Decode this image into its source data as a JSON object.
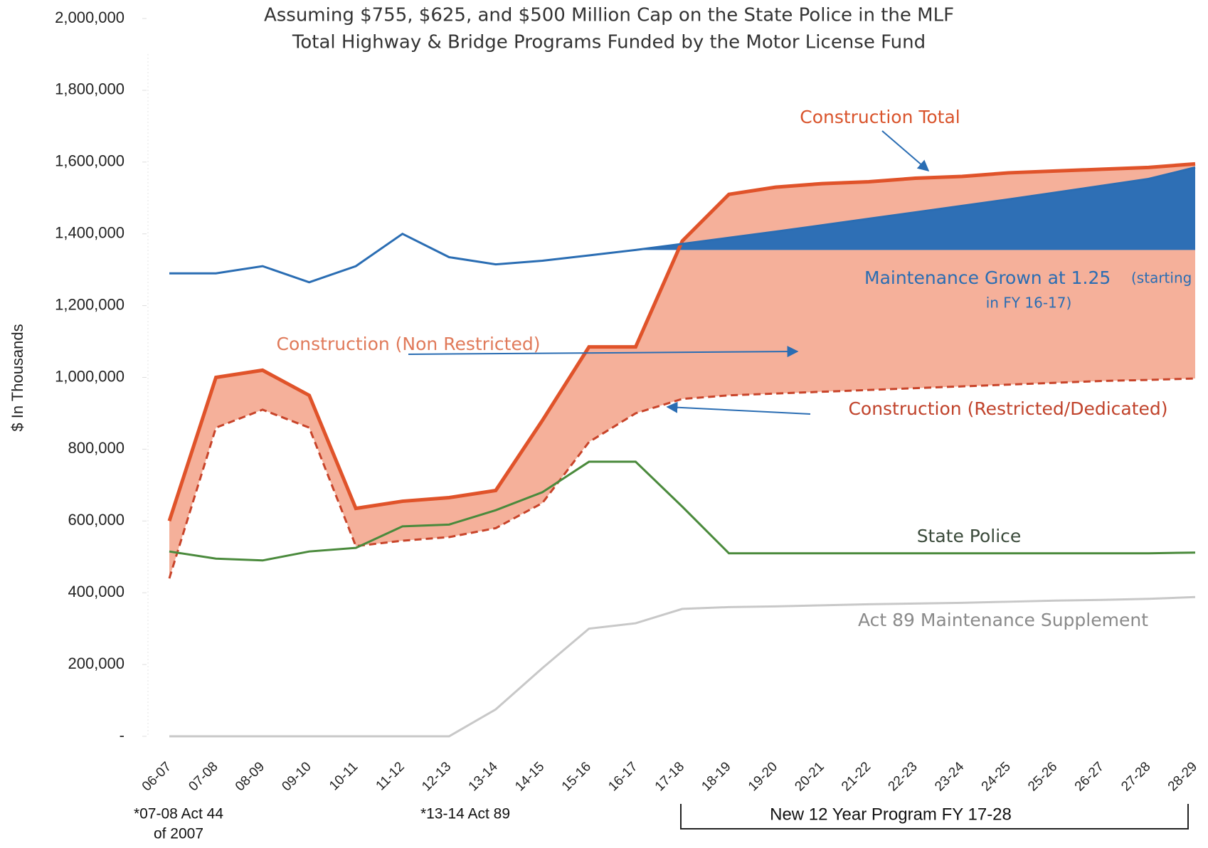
{
  "chart_data": {
    "type": "line",
    "title": "Assuming $755, $625, and $500 Million Cap on the State Police in the MLF",
    "subtitle": "Total Highway & Bridge Programs Funded by the Motor License Fund",
    "y_label": "$ In Thousands",
    "categories": [
      "06-07",
      "07-08",
      "08-09",
      "09-10",
      "10-11",
      "11-12",
      "12-13",
      "13-14",
      "14-15",
      "15-16",
      "16-17",
      "17-18",
      "18-19",
      "19-20",
      "20-21",
      "21-22",
      "22-23",
      "23-24",
      "24-25",
      "25-26",
      "26-27",
      "27-28",
      "28-29"
    ],
    "ylim": [
      0,
      2000000
    ],
    "yticks": [
      {
        "value": 0,
        "label": "-"
      },
      {
        "value": 200000,
        "label": "200,000"
      },
      {
        "value": 400000,
        "label": "400,000"
      },
      {
        "value": 600000,
        "label": "600,000"
      },
      {
        "value": 800000,
        "label": "800,000"
      },
      {
        "value": 1000000,
        "label": "1,000,000"
      },
      {
        "value": 1200000,
        "label": "1,200,000"
      },
      {
        "value": 1400000,
        "label": "1,400,000"
      },
      {
        "value": 1600000,
        "label": "1,600,000"
      },
      {
        "value": 1800000,
        "label": "1,800,000"
      },
      {
        "value": 2000000,
        "label": "2,000,000"
      }
    ],
    "series": [
      {
        "name": "Construction Total",
        "color": "#e0532a",
        "values": [
          600000,
          1000000,
          1020000,
          950000,
          635000,
          655000,
          665000,
          685000,
          880000,
          1085000,
          1085000,
          1380000,
          1510000,
          1530000,
          1540000,
          1545000,
          1555000,
          1560000,
          1570000,
          1575000,
          1580000,
          1585000,
          1595000
        ]
      },
      {
        "name": "Construction (Restricted/Dedicated)",
        "color": "#c8442a",
        "dashed": true,
        "values": [
          440000,
          860000,
          910000,
          860000,
          530000,
          545000,
          555000,
          580000,
          650000,
          820000,
          900000,
          940000,
          950000,
          955000,
          960000,
          965000,
          970000,
          975000,
          980000,
          985000,
          990000,
          993000,
          997000
        ]
      },
      {
        "name": "Maintenance Grown at 1.25",
        "color": "#2a6db3",
        "values": [
          1290000,
          1290000,
          1310000,
          1265000,
          1310000,
          1400000,
          1335000,
          1315000,
          1325000,
          1340000,
          1355000,
          1372000,
          1389000,
          1406000,
          1424000,
          1442000,
          1460000,
          1478000,
          1496000,
          1515000,
          1534000,
          1553000,
          1585000
        ]
      },
      {
        "name": "State Police",
        "color": "#4a8a3c",
        "values": [
          515000,
          495000,
          490000,
          515000,
          525000,
          585000,
          590000,
          630000,
          680000,
          765000,
          765000,
          640000,
          510000,
          510000,
          510000,
          510000,
          510000,
          510000,
          510000,
          510000,
          510000,
          510000,
          512000
        ]
      },
      {
        "name": "Act 89 Maintenance Supplement",
        "color": "#c8c8c8",
        "values": [
          0,
          0,
          0,
          0,
          0,
          0,
          0,
          75000,
          190000,
          300000,
          315000,
          355000,
          360000,
          362000,
          365000,
          368000,
          370000,
          372000,
          375000,
          378000,
          380000,
          383000,
          388000
        ]
      }
    ],
    "annotations": [
      "Construction (Non Restricted)",
      "(starting",
      "in FY 16-17)"
    ],
    "notes": [
      "*07-08 Act 44",
      "of 2007",
      "*13-14 Act 89",
      "New 12 Year Program FY 17-28"
    ]
  }
}
